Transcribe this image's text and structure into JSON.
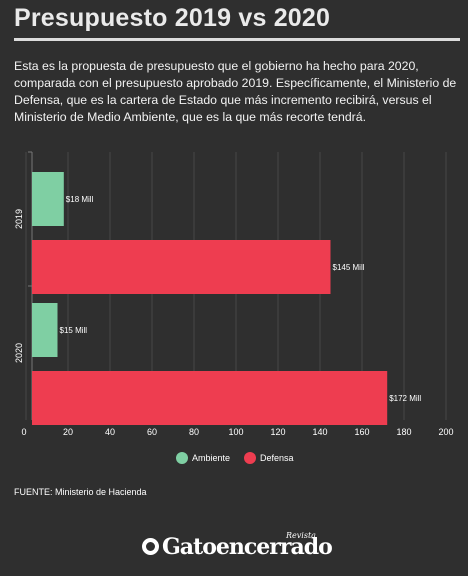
{
  "title": "Presupuesto 2019 vs 2020",
  "description": "Esta es la propuesta de presupuesto que el gobierno ha hecho para 2020, comparada con el presupuesto aprobado 2019. Específicamente, el Ministerio de Defensa, que es la cartera de Estado que más incremento recibirá, versus el Ministerio de Medio Ambiente, que es la que más recorte tendrá.",
  "source": "FUENTE: Ministerio de Hacienda",
  "logo": {
    "text": "Gatoencerrado",
    "tag": "Revista"
  },
  "chart_data": {
    "type": "bar",
    "orientation": "horizontal",
    "categories": [
      "2019",
      "2020"
    ],
    "series": [
      {
        "name": "Ambiente",
        "color": "#7fcfa3",
        "values": [
          18,
          15
        ],
        "labels": [
          "$18 Mill",
          "$15 Mill"
        ]
      },
      {
        "name": "Defensa",
        "color": "#ee3d50",
        "values": [
          145,
          172
        ],
        "labels": [
          "$145 Mill",
          "$172 Mill"
        ]
      }
    ],
    "xlim": [
      0,
      200
    ],
    "xticks": [
      0,
      20,
      40,
      60,
      80,
      100,
      120,
      140,
      160,
      180,
      200
    ],
    "grid": true,
    "legend": "bottom-center"
  }
}
